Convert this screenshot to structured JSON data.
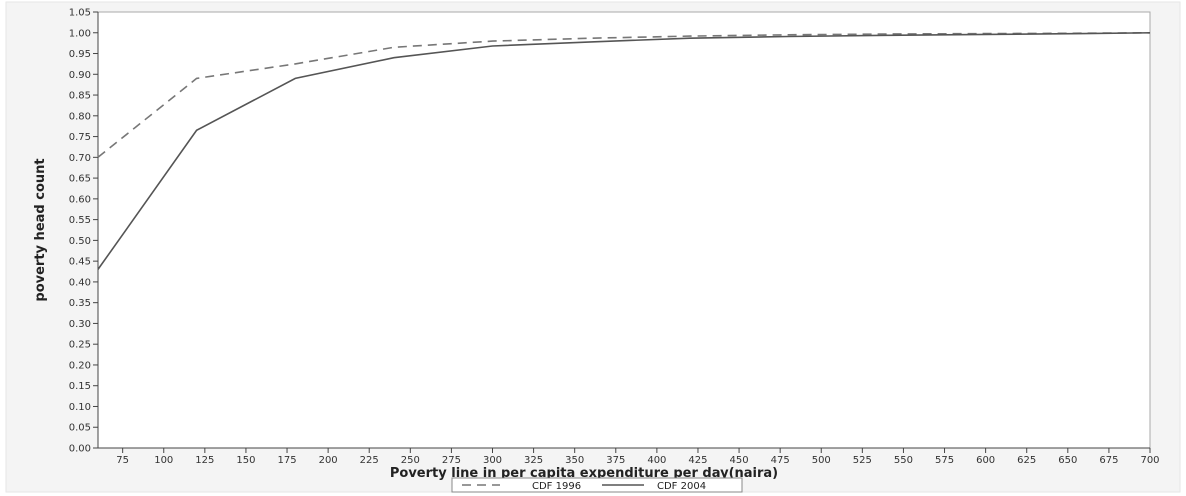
{
  "chart_data": {
    "type": "line",
    "xlabel": "Poverty line in per capita expenditure per day(naira)",
    "ylabel": "poverty head count",
    "xlim": [
      60,
      700
    ],
    "ylim": [
      0,
      1.05
    ],
    "x_ticks": [
      75,
      100,
      125,
      150,
      175,
      200,
      225,
      250,
      275,
      300,
      325,
      350,
      375,
      400,
      425,
      450,
      475,
      500,
      525,
      550,
      575,
      600,
      625,
      650,
      675,
      700
    ],
    "x_tick_labels": [
      "75",
      "100",
      "125",
      "150",
      "175",
      "200",
      "225",
      "250",
      "275",
      "300",
      "325",
      "350",
      "375",
      "400",
      "425",
      "450",
      "475",
      "500",
      "525",
      "550",
      "575",
      "600",
      "625",
      "650",
      "675",
      "700"
    ],
    "y_ticks": [
      0,
      0.05,
      0.1,
      0.15,
      0.2,
      0.25,
      0.3,
      0.35,
      0.4,
      0.45,
      0.5,
      0.55,
      0.6,
      0.65,
      0.7,
      0.75,
      0.8,
      0.85,
      0.9,
      0.95,
      1.0,
      1.05
    ],
    "y_tick_labels": [
      "0.00",
      "0.05",
      "0.10",
      "0.15",
      "0.20",
      "0.25",
      "0.30",
      "0.35",
      "0.40",
      "0.45",
      "0.50",
      "0.55",
      "0.60",
      "0.65",
      "0.70",
      "0.75",
      "0.80",
      "0.85",
      "0.90",
      "0.95",
      "1.00",
      "1.05"
    ],
    "series": [
      {
        "name": "CDF 1996",
        "style": "dashed",
        "color": "#777777",
        "x": [
          60,
          120,
          180,
          240,
          300,
          360,
          420,
          480,
          540,
          600,
          660,
          700
        ],
        "y": [
          0.7,
          0.89,
          0.925,
          0.965,
          0.98,
          0.987,
          0.992,
          0.995,
          0.997,
          0.998,
          0.999,
          1.0
        ]
      },
      {
        "name": "CDF 2004",
        "style": "solid",
        "color": "#555555",
        "x": [
          60,
          120,
          180,
          240,
          300,
          360,
          420,
          480,
          540,
          600,
          660,
          700
        ],
        "y": [
          0.43,
          0.765,
          0.89,
          0.94,
          0.968,
          0.978,
          0.987,
          0.991,
          0.994,
          0.996,
          0.998,
          1.0
        ]
      }
    ],
    "legend": {
      "position": "bottom",
      "entries": [
        "CDF 1996",
        "CDF 2004"
      ]
    },
    "grid": false
  }
}
